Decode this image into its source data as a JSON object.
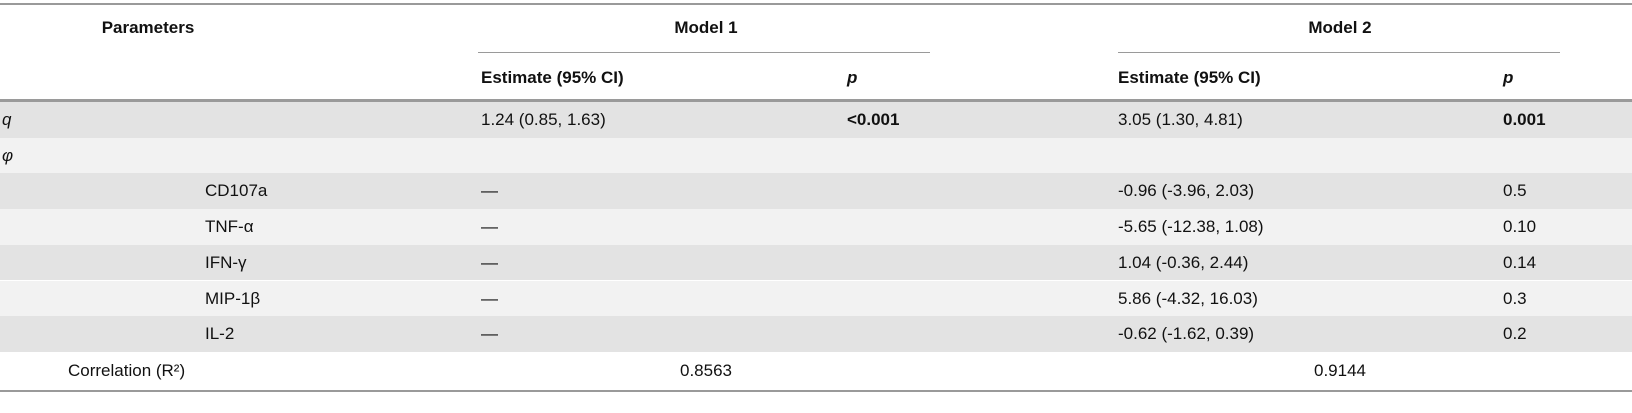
{
  "table": {
    "header": {
      "parameters": "Parameters",
      "model1": "Model 1",
      "model2": "Model 2",
      "model1_estimate": "Estimate (95% CI)",
      "model1_p": "p",
      "model2_estimate": "Estimate (95% CI)",
      "model2_p": "p"
    },
    "rows": [
      {
        "label": "q",
        "model1": {
          "estimate": "1.24 (0.85, 1.63)",
          "p": "<0.001"
        },
        "model2": {
          "estimate": "3.05 (1.30, 4.81)",
          "p": "0.001"
        }
      },
      {
        "label": "φ"
      },
      {
        "label": "CD107a",
        "model1": {
          "estimate": "—"
        },
        "model2": {
          "estimate": "-0.96 (-3.96, 2.03)",
          "p": "0.5"
        }
      },
      {
        "label": "TNF-α",
        "model1": {
          "estimate": "—"
        },
        "model2": {
          "estimate": "-5.65 (-12.38, 1.08)",
          "p": "0.10"
        }
      },
      {
        "label": "IFN-γ",
        "model1": {
          "estimate": "—"
        },
        "model2": {
          "estimate": "1.04 (-0.36, 2.44)",
          "p": "0.14"
        }
      },
      {
        "label": "MIP-1β",
        "model1": {
          "estimate": "—"
        },
        "model2": {
          "estimate": "5.86 (-4.32, 16.03)",
          "p": "0.3"
        }
      },
      {
        "label": "IL-2",
        "model1": {
          "estimate": "—"
        },
        "model2": {
          "estimate": "-0.62 (-1.62, 0.39)",
          "p": "0.2"
        }
      }
    ],
    "correlation": {
      "label": "Correlation (R²)",
      "model1": "0.8563",
      "model2": "0.9144"
    }
  }
}
